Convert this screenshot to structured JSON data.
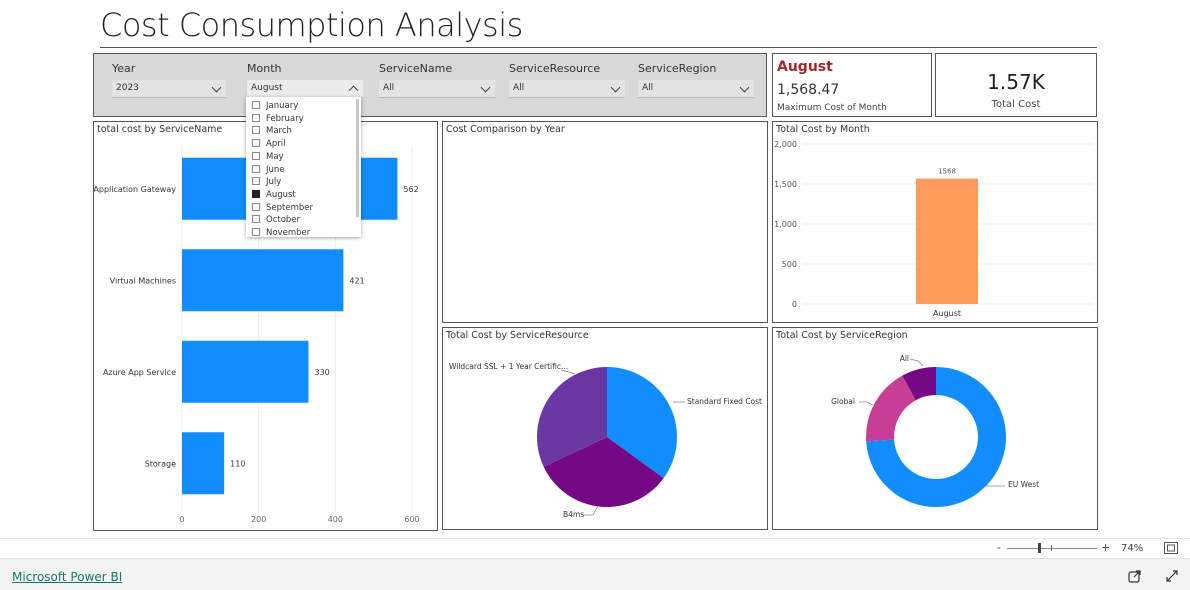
{
  "page": {
    "title": "Cost Consumption Analysis"
  },
  "filters": {
    "year": {
      "label": "Year",
      "value": "2023"
    },
    "month": {
      "label": "Month",
      "value": "August"
    },
    "service_name": {
      "label": "ServiceName",
      "value": "All"
    },
    "service_resource": {
      "label": "ServiceResource",
      "value": "All"
    },
    "service_region": {
      "label": "ServiceRegion",
      "value": "All"
    }
  },
  "month_dropdown": {
    "options": [
      "January",
      "February",
      "March",
      "April",
      "May",
      "June",
      "July",
      "August",
      "September",
      "October",
      "November"
    ],
    "selected": "August"
  },
  "kpi_max": {
    "month": "August",
    "value": "1,568.47",
    "label": "Maximum Cost of Month"
  },
  "kpi_total": {
    "value": "1.57K",
    "label": "Total Cost"
  },
  "cost_comparison": {
    "title": "Cost Comparison by Year"
  },
  "colors": {
    "blue": "#118DFF",
    "orange": "#FF9A5A",
    "purple_dark": "#750985",
    "purple": "#6B37A3",
    "pink": "#C83D95"
  },
  "chart_data": [
    {
      "type": "bar",
      "orientation": "horizontal",
      "title": "total cost by ServiceName",
      "categories": [
        "Application Gateway",
        "Virtual Machines",
        "Azure App Service",
        "Storage"
      ],
      "values": [
        562,
        421,
        330,
        110
      ],
      "xlim": [
        0,
        600
      ],
      "xticks": [
        0,
        200,
        400,
        600
      ],
      "color": "#118DFF"
    },
    {
      "type": "bar",
      "title": "Total Cost by Month",
      "categories": [
        "August"
      ],
      "values": [
        1568
      ],
      "ylim": [
        0,
        2000
      ],
      "yticks": [
        0,
        500,
        1000,
        1500,
        2000
      ],
      "ytick_labels": [
        "0",
        "500",
        "1,000",
        "1,500",
        "2,000"
      ],
      "color": "#FF9A5A"
    },
    {
      "type": "pie",
      "title": "Total Cost by ServiceResource",
      "slices": [
        {
          "label": "Standard Fixed Cost",
          "value": 35,
          "color": "#118DFF"
        },
        {
          "label": "B4ms",
          "value": 33,
          "color": "#750985"
        },
        {
          "label": "Wildcard SSL + 1 Year Certific...",
          "value": 32,
          "color": "#6B37A3"
        }
      ]
    },
    {
      "type": "pie",
      "donut": true,
      "title": "Total Cost by ServiceRegion",
      "slices": [
        {
          "label": "EU West",
          "value": 74,
          "color": "#118DFF"
        },
        {
          "label": "Global",
          "value": 18,
          "color": "#C83D95"
        },
        {
          "label": "All",
          "value": 8,
          "color": "#750985"
        }
      ]
    }
  ],
  "status_bar": {
    "zoom_minus": "-",
    "zoom_plus": "+",
    "zoom": "74%"
  },
  "footer": {
    "brand": "Microsoft Power BI"
  }
}
